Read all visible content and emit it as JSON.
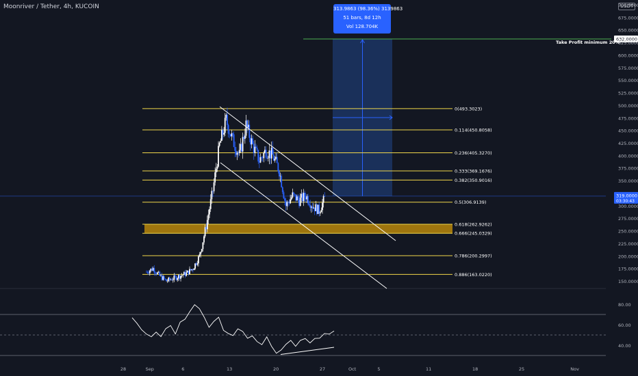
{
  "header": {
    "symbol_title": "Moonriver / Tether, 4h, KUCOIN",
    "currency_badge": "USDT"
  },
  "measure_tooltip": {
    "line1": "313.9863 (98.36%) 3139863",
    "line2": "51 bars, 8d 12h",
    "line3": "Vol 128.704K"
  },
  "price_labels": {
    "take_profit_text": "Take Profit minimum 20%",
    "take_profit_value": "632.0000",
    "current_price": "319.0000",
    "countdown": "03:30:43"
  },
  "colors": {
    "background": "#131722",
    "candle_up": "#ffffff",
    "candle_down": "#2962ff",
    "fib_line": "#f2d74a",
    "golden_zone": "#b8860b",
    "channel": "#ffffff",
    "rsi_line": "#ffffff",
    "take_profit_line": "#4caf50",
    "measure_fill": "#1e3a6e"
  },
  "chart_data": [
    {
      "type": "candlestick",
      "title": "Moonriver / Tether, 4h, KUCOIN",
      "x_ticks": [
        "28",
        "Sep",
        "6",
        "13",
        "20",
        "27",
        "Oct",
        "5",
        "11",
        "18",
        "25",
        "Nov"
      ],
      "y_axis": {
        "ylim": [
          140,
          710
        ],
        "ticks": [
          "150.0000",
          "175.0000",
          "200.0000",
          "225.0000",
          "250.0000",
          "275.0000",
          "300.0000",
          "325.0000",
          "350.0000",
          "375.0000",
          "400.0000",
          "425.0000",
          "450.0000",
          "475.0000",
          "500.0000",
          "525.0000",
          "550.0000",
          "575.0000",
          "600.0000",
          "625.0000",
          "650.0000",
          "675.0000",
          "700.0000"
        ]
      },
      "close_path": [
        {
          "x": "Aug 31",
          "y": 168
        },
        {
          "x": "Sep 1",
          "y": 175
        },
        {
          "x": "Sep 2",
          "y": 160
        },
        {
          "x": "Sep 3",
          "y": 150
        },
        {
          "x": "Sep 4",
          "y": 155
        },
        {
          "x": "Sep 5",
          "y": 160
        },
        {
          "x": "Sep 6",
          "y": 165
        },
        {
          "x": "Sep 7",
          "y": 175
        },
        {
          "x": "Sep 8",
          "y": 200
        },
        {
          "x": "Sep 9",
          "y": 260
        },
        {
          "x": "Sep 10",
          "y": 330
        },
        {
          "x": "Sep 11",
          "y": 420
        },
        {
          "x": "Sep 12",
          "y": 470
        },
        {
          "x": "Sep 13",
          "y": 430
        },
        {
          "x": "Sep 14",
          "y": 400
        },
        {
          "x": "Sep 15",
          "y": 460
        },
        {
          "x": "Sep 16",
          "y": 420
        },
        {
          "x": "Sep 17",
          "y": 390
        },
        {
          "x": "Sep 18",
          "y": 410
        },
        {
          "x": "Sep 19",
          "y": 400
        },
        {
          "x": "Sep 20",
          "y": 370
        },
        {
          "x": "Sep 21",
          "y": 300
        },
        {
          "x": "Sep 22",
          "y": 320
        },
        {
          "x": "Sep 23",
          "y": 310
        },
        {
          "x": "Sep 24",
          "y": 320
        },
        {
          "x": "Sep 25",
          "y": 300
        },
        {
          "x": "Sep 26",
          "y": 290
        },
        {
          "x": "Sep 27",
          "y": 319
        }
      ],
      "fib_levels": [
        {
          "label": "0(493.3023)",
          "ratio": 0,
          "price": 493.3023
        },
        {
          "label": "0.114(450.8058)",
          "ratio": 0.114,
          "price": 450.8058
        },
        {
          "label": "0.236(405.3270)",
          "ratio": 0.236,
          "price": 405.327
        },
        {
          "label": "0.333(369.1676)",
          "ratio": 0.333,
          "price": 369.1676
        },
        {
          "label": "0.382(350.9016)",
          "ratio": 0.382,
          "price": 350.9016
        },
        {
          "label": "0.5(306.9139)",
          "ratio": 0.5,
          "price": 306.9139
        },
        {
          "label": "0.618(262.9262)",
          "ratio": 0.618,
          "price": 262.9262
        },
        {
          "label": "0.666(245.0329)",
          "ratio": 0.666,
          "price": 245.0329
        },
        {
          "label": "0.786(200.2997)",
          "ratio": 0.786,
          "price": 200.2997
        },
        {
          "label": "0.886(163.0220)",
          "ratio": 0.886,
          "price": 163.022
        }
      ],
      "golden_zone": {
        "from": 245.0329,
        "to": 262.9262
      },
      "take_profit": {
        "price": 632.0,
        "label": "Take Profit minimum 20%"
      },
      "current_price": 319.0,
      "measure_range": {
        "from_price": 319.0,
        "to_price": 632.0,
        "change": "313.9863 (98.36%)",
        "bars": 51
      }
    },
    {
      "type": "line",
      "indicator": "RSI",
      "y_ticks": [
        "40.00",
        "60.00",
        "80.00"
      ],
      "ylim": [
        32,
        92
      ],
      "bands": [
        30,
        50,
        70
      ],
      "values": [
        68,
        62,
        55,
        50,
        48,
        52,
        47,
        55,
        60,
        52,
        62,
        66,
        72,
        80,
        76,
        68,
        58,
        62,
        66,
        56,
        52,
        50,
        55,
        52,
        46,
        50,
        44,
        40,
        48,
        38,
        32,
        36,
        40,
        44,
        38,
        44,
        46,
        42,
        48,
        46,
        50,
        52,
        54
      ]
    }
  ]
}
